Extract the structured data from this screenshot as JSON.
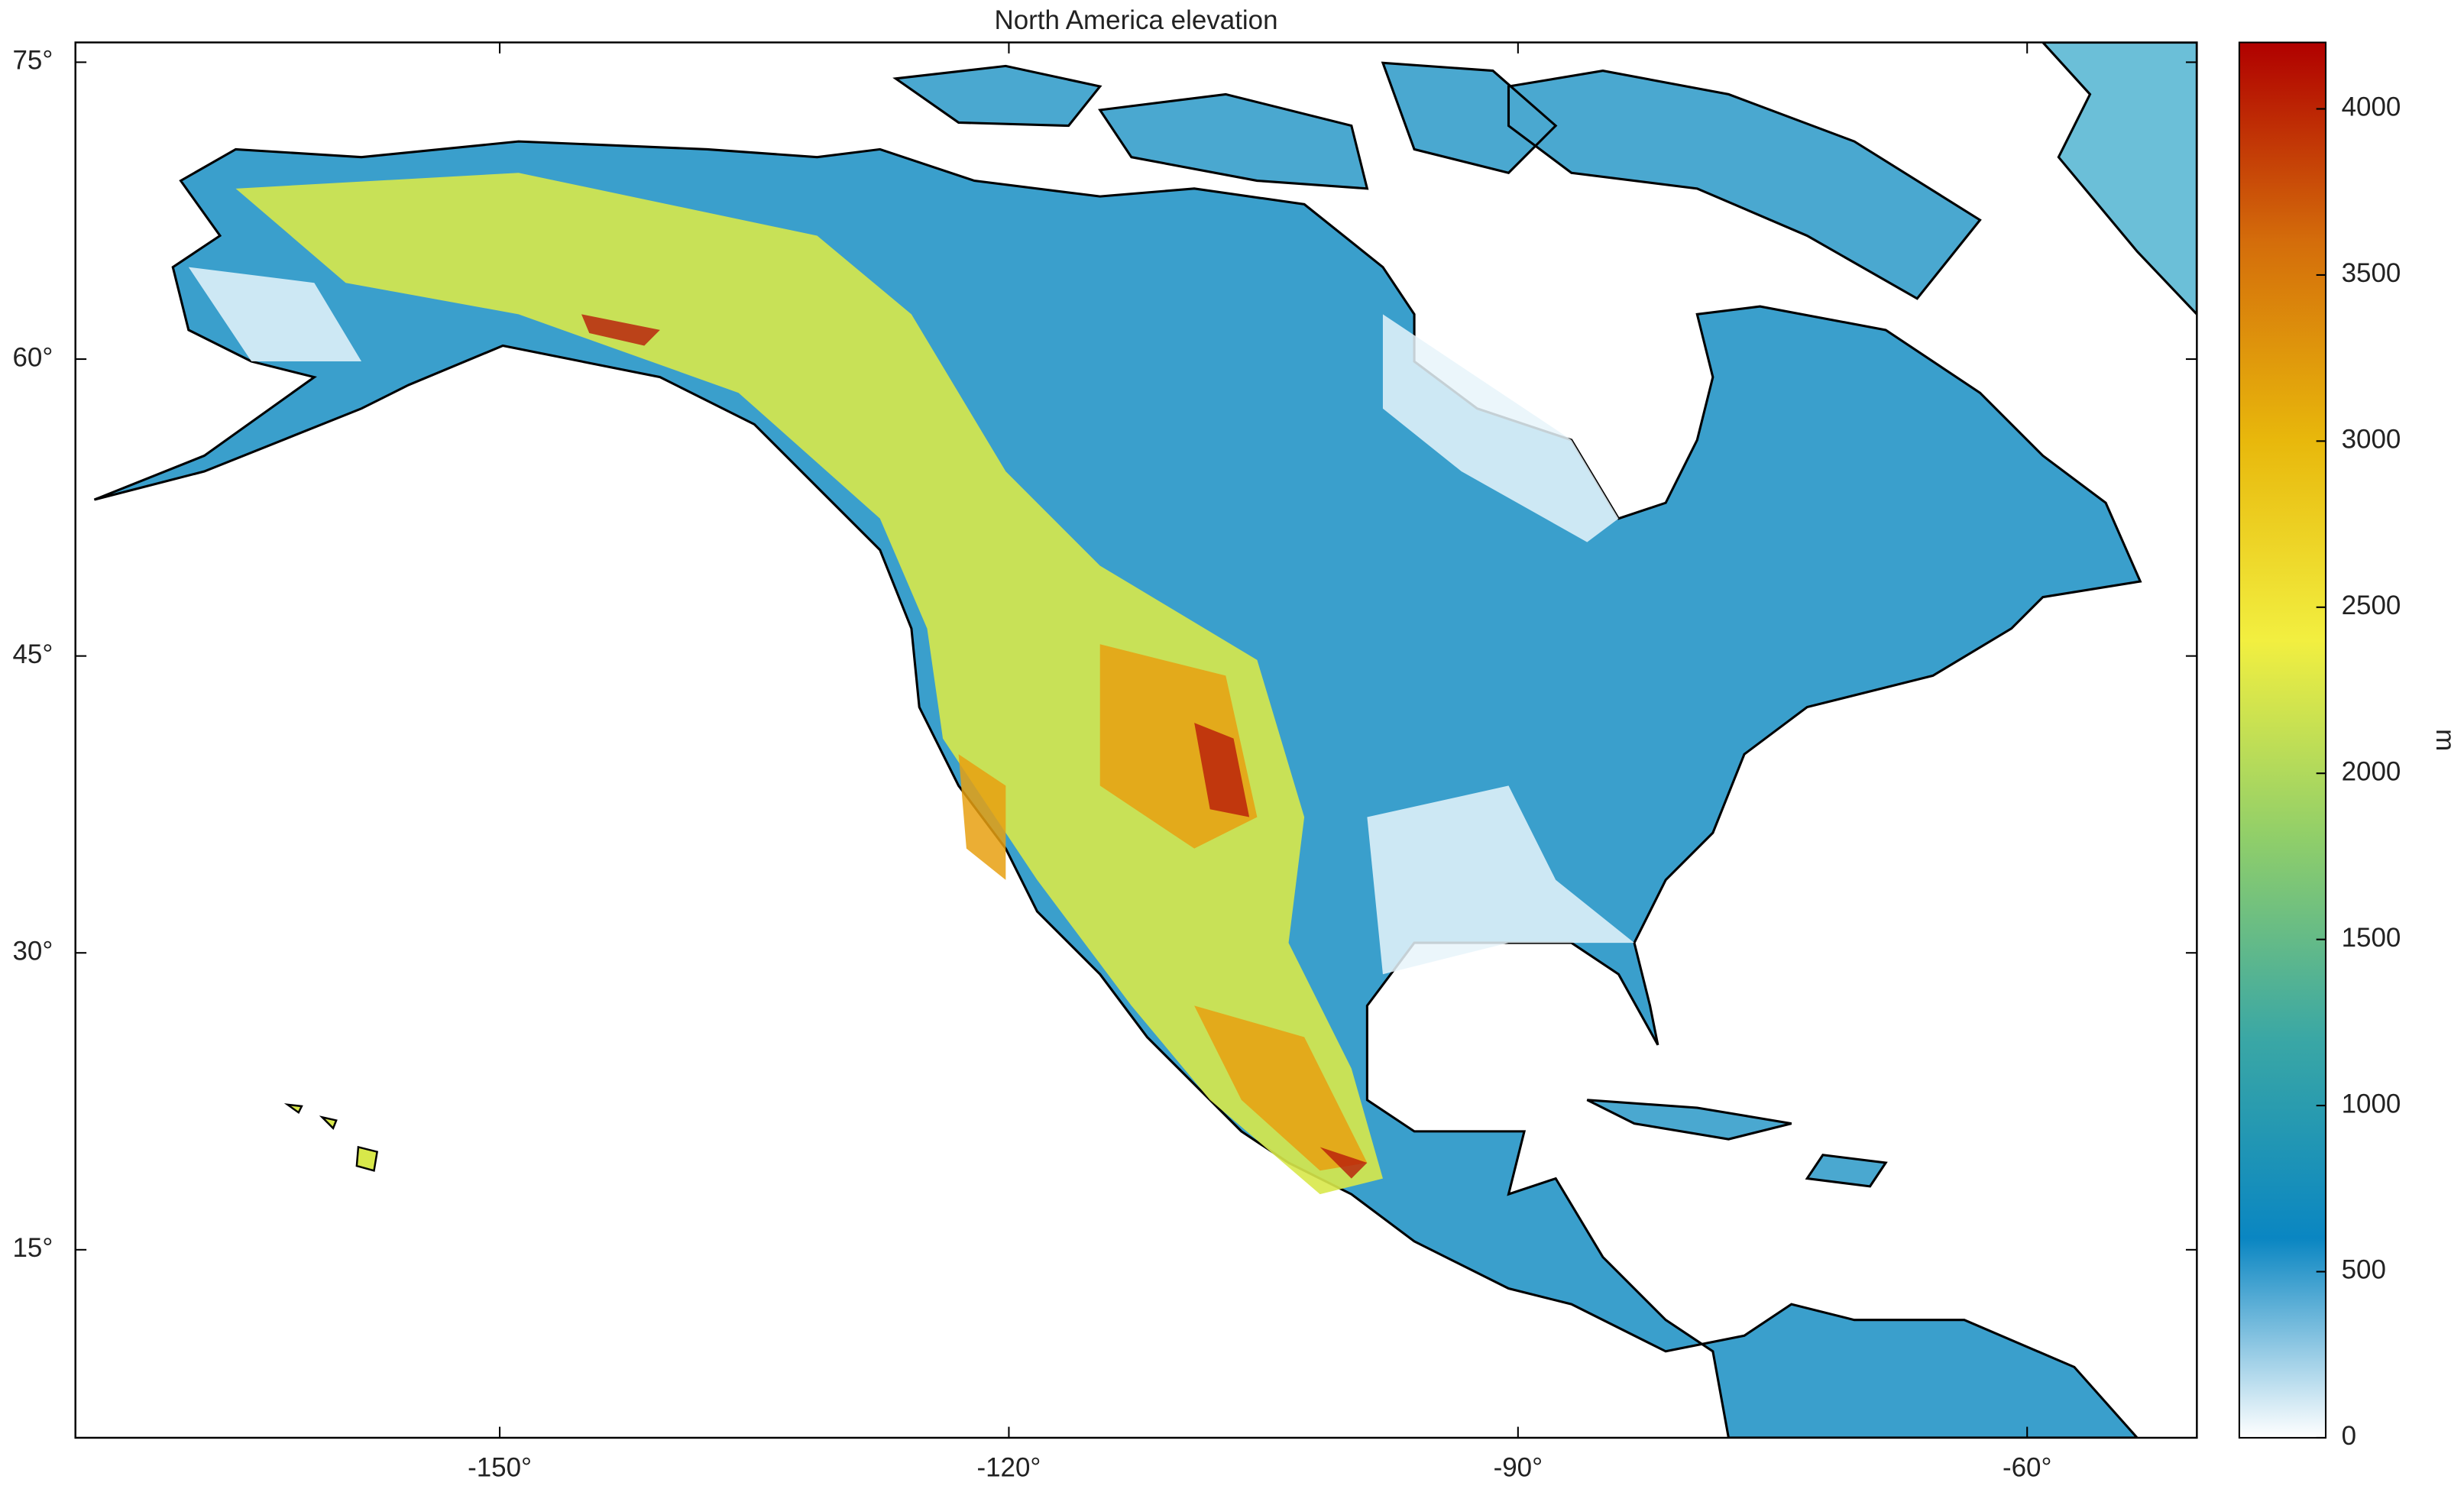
{
  "chart_data": {
    "type": "map",
    "title": "North America elevation",
    "xlim": [
      -175,
      -50
    ],
    "ylim": [
      5.5,
      76
    ],
    "xticks": [
      {
        "value": -150,
        "label": "-150°"
      },
      {
        "value": -120,
        "label": "-120°"
      },
      {
        "value": -90,
        "label": "-90°"
      },
      {
        "value": -60,
        "label": "-60°"
      }
    ],
    "yticks": [
      {
        "value": 15,
        "label": "15°"
      },
      {
        "value": 30,
        "label": "30°"
      },
      {
        "value": 45,
        "label": "45°"
      },
      {
        "value": 60,
        "label": "60°"
      },
      {
        "value": 75,
        "label": "75°"
      }
    ],
    "colorbar": {
      "label": "m",
      "clim": [
        0,
        4200
      ],
      "ticks": [
        0,
        500,
        1000,
        1500,
        2000,
        2500,
        3000,
        3500,
        4000
      ],
      "colormap": [
        "#ffffff",
        "#0a86c2",
        "#3aa7a5",
        "#8fce6a",
        "#f2ef40",
        "#e8b80c",
        "#d46d0b",
        "#b00000"
      ]
    }
  }
}
